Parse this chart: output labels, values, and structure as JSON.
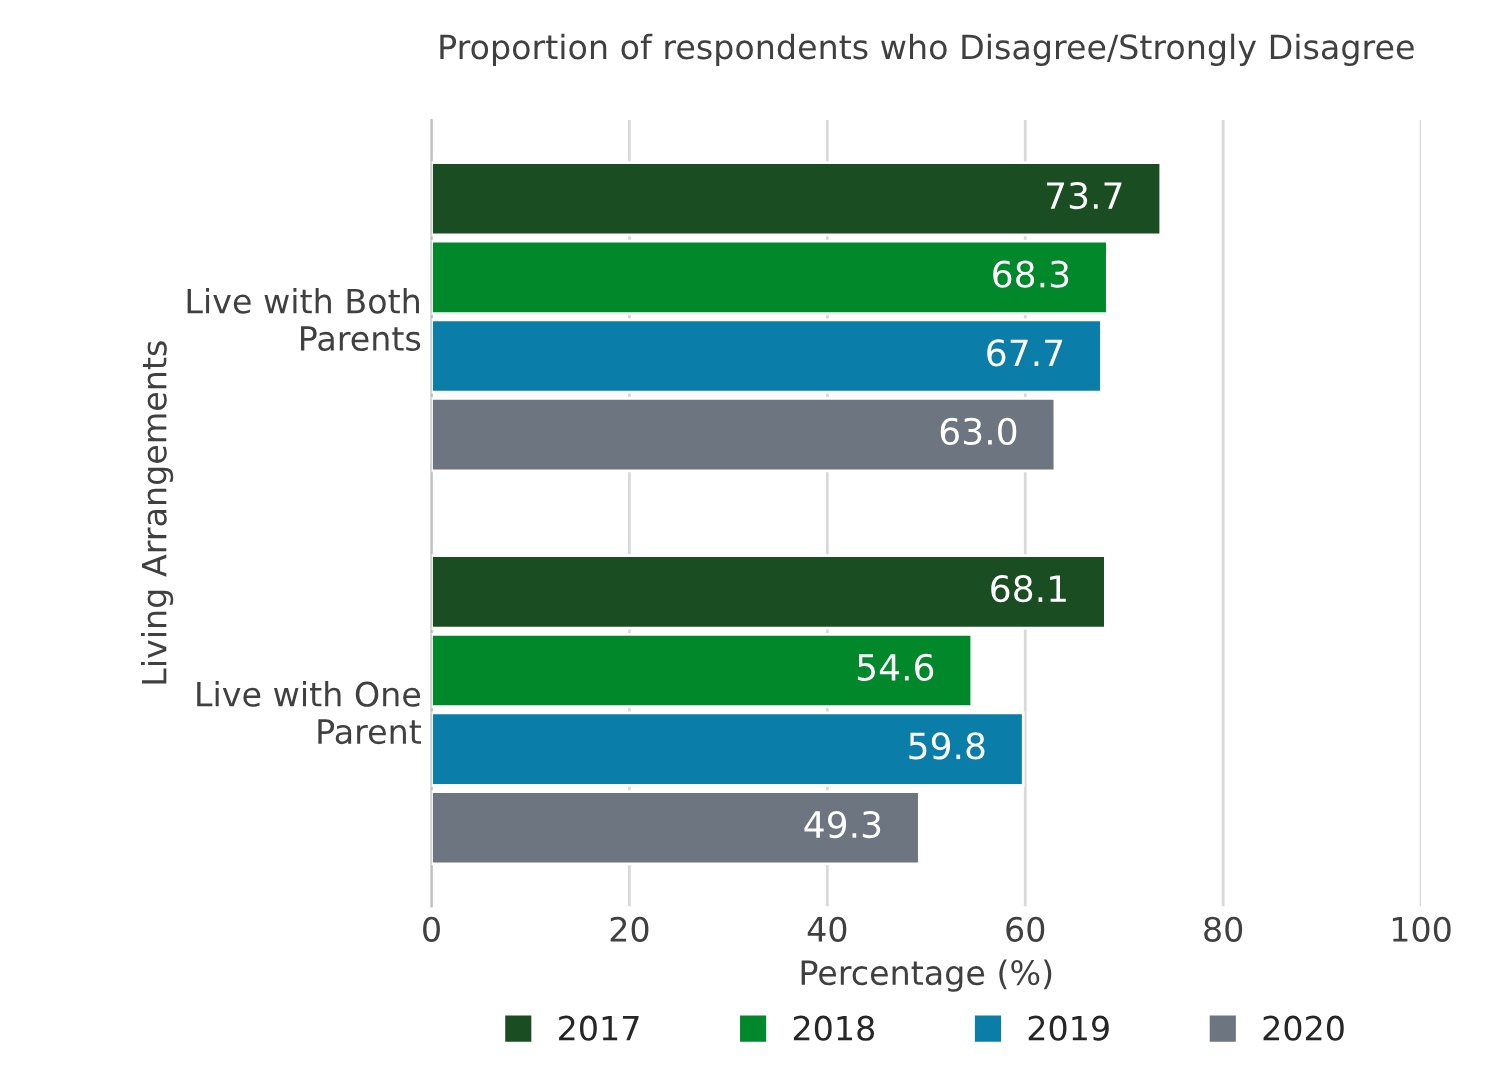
{
  "chart_data": {
    "type": "bar",
    "orientation": "horizontal",
    "title": "Proportion of respondents who Disagree/Strongly Disagree",
    "xlabel": "Percentage (%)",
    "ylabel": "Living Arrangements",
    "categories": [
      "Live with Both\nParents",
      "Live with One\nParent"
    ],
    "series": [
      {
        "name": "2017",
        "color": "#1a4d22",
        "values": [
          73.7,
          68.1
        ]
      },
      {
        "name": "2018",
        "color": "#00882b",
        "values": [
          68.3,
          54.6
        ]
      },
      {
        "name": "2019",
        "color": "#0a7ea8",
        "values": [
          67.7,
          59.8
        ]
      },
      {
        "name": "2020",
        "color": "#6d7580",
        "values": [
          63.0,
          49.3
        ]
      }
    ],
    "xlim": [
      0,
      100
    ],
    "xticks": [
      0,
      20,
      40,
      60,
      80,
      100
    ],
    "grid": "x",
    "legend": "bottom",
    "value_labels": [
      [
        "73.7",
        "68.1"
      ],
      [
        "68.3",
        "54.6"
      ],
      [
        "67.7",
        "59.8"
      ],
      [
        "63.0",
        "49.3"
      ]
    ]
  }
}
